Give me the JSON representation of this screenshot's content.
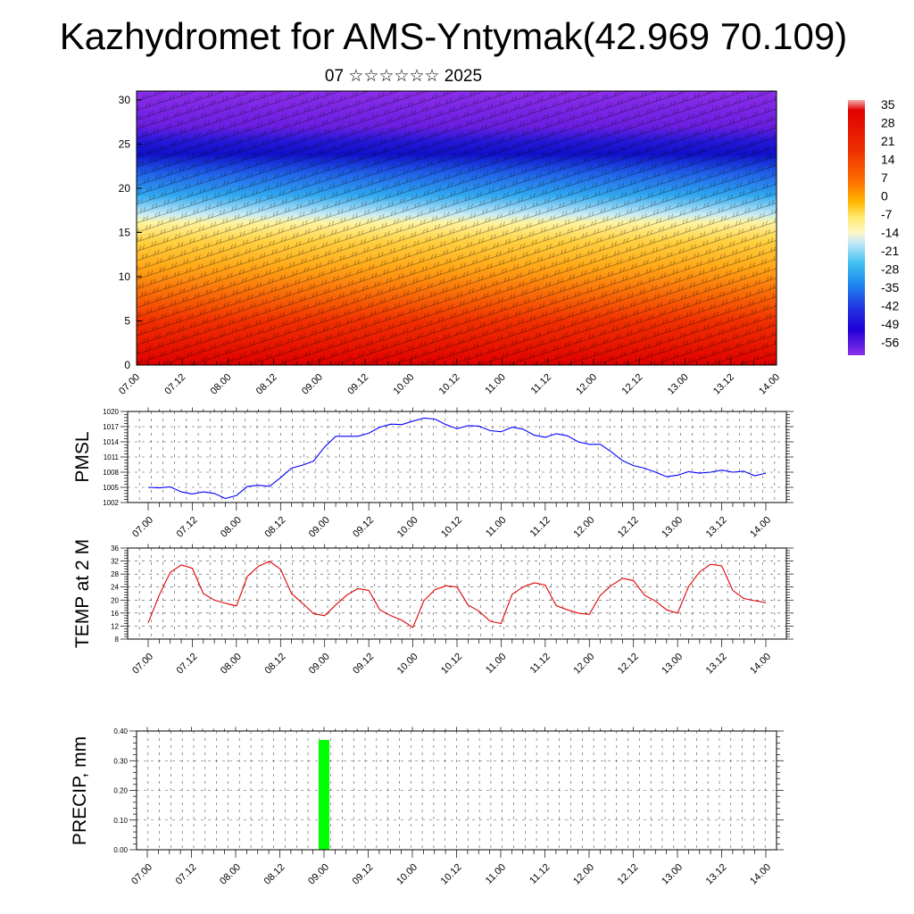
{
  "title": "Kazhydromet for AMS-Yntymak(42.969 70.109)",
  "subtitle": "07 ☆☆☆☆☆☆ 2025",
  "colorbar": {
    "labels": [
      "35",
      "28",
      "21",
      "14",
      "7",
      "0",
      "-7",
      "-14",
      "-21",
      "-28",
      "-35",
      "-42",
      "-49",
      "-56"
    ],
    "colors_top_to_bottom": [
      "#f4a8a8",
      "#e00000",
      "#e82000",
      "#f04000",
      "#f86000",
      "#ff8000",
      "#ffb000",
      "#ffe060",
      "#fff2b0",
      "#bfe6f6",
      "#40c0f0",
      "#2090f0",
      "#2040e0",
      "#2000e0",
      "#5000d8",
      "#8a2ee8"
    ]
  },
  "chart_data": [
    {
      "type": "heatmap",
      "name": "cross-section",
      "x_ticklabels": [
        "07.00",
        "07.12",
        "08.00",
        "08.12",
        "09.00",
        "09.12",
        "10.00",
        "10.12",
        "11.00",
        "11.12",
        "12.00",
        "12.12",
        "13.00",
        "13.12",
        "14.00"
      ],
      "y_ticklabels": [
        "0",
        "5",
        "10",
        "15",
        "20",
        "25",
        "30"
      ],
      "ylim": [
        0,
        31
      ],
      "note": "temperature-colored vertical profile with wind barbs"
    },
    {
      "type": "line",
      "ylabel": "PMSL",
      "ylim": [
        1002,
        1020
      ],
      "yticks": [
        "1020",
        "1017",
        "1014",
        "1011",
        "1008",
        "1005",
        "1002"
      ],
      "x_ticklabels": [
        "07.00",
        "07.12",
        "08.00",
        "08.12",
        "09.00",
        "09.12",
        "10.00",
        "10.12",
        "11.00",
        "11.12",
        "12.00",
        "12.12",
        "13.00",
        "13.12",
        "14.00"
      ],
      "color": "#0000ff",
      "values": [
        1005.0,
        1004.9,
        1005.1,
        1004.1,
        1003.7,
        1004.1,
        1003.8,
        1002.8,
        1003.4,
        1005.2,
        1005.4,
        1005.2,
        1006.9,
        1008.8,
        1009.4,
        1010.2,
        1013.0,
        1015.1,
        1015.1,
        1015.1,
        1015.7,
        1016.9,
        1017.5,
        1017.4,
        1018.1,
        1018.7,
        1018.5,
        1017.4,
        1016.6,
        1017.2,
        1017.1,
        1016.2,
        1016.0,
        1016.9,
        1016.5,
        1015.3,
        1014.9,
        1015.6,
        1015.2,
        1014.0,
        1013.5,
        1013.5,
        1012.0,
        1010.3,
        1009.3,
        1008.8,
        1008.0,
        1007.1,
        1007.4,
        1008.1,
        1007.8,
        1008.0,
        1008.4,
        1008.0,
        1008.2,
        1007.3,
        1007.8
      ]
    },
    {
      "type": "line",
      "ylabel": "TEMP at 2 M",
      "ylim": [
        8,
        36
      ],
      "yticks": [
        "36",
        "32",
        "28",
        "24",
        "20",
        "16",
        "12",
        "8"
      ],
      "x_ticklabels": [
        "07.00",
        "07.12",
        "08.00",
        "08.12",
        "09.00",
        "09.12",
        "10.00",
        "10.12",
        "11.00",
        "11.12",
        "12.00",
        "12.12",
        "13.00",
        "13.12",
        "14.00"
      ],
      "color": "#e00000",
      "values": [
        13.0,
        21.5,
        28.5,
        30.8,
        29.8,
        22.0,
        20.0,
        19.0,
        18.2,
        27.3,
        30.4,
        31.9,
        29.5,
        22.0,
        19.0,
        15.8,
        15.2,
        18.5,
        21.5,
        23.5,
        23.0,
        17.0,
        15.2,
        13.8,
        11.6,
        19.8,
        23.2,
        24.4,
        24.0,
        18.5,
        16.6,
        13.5,
        12.8,
        21.8,
        24.0,
        25.3,
        24.6,
        18.3,
        17.0,
        16.0,
        15.6,
        21.5,
        24.5,
        26.7,
        26.0,
        21.5,
        19.7,
        17.0,
        16.0,
        24.2,
        28.7,
        31.0,
        30.5,
        23.0,
        20.5,
        19.8,
        19.2
      ]
    },
    {
      "type": "bar",
      "ylabel": "PRECIP, mm",
      "ylim": [
        0,
        0.4
      ],
      "yticks": [
        "0.40",
        "0.30",
        "0.20",
        "0.10",
        "0.00"
      ],
      "x_ticklabels": [
        "07.00",
        "07.12",
        "08.00",
        "08.12",
        "09.00",
        "09.12",
        "10.00",
        "10.12",
        "11.00",
        "11.12",
        "12.00",
        "12.12",
        "13.00",
        "13.12",
        "14.00"
      ],
      "color": "#00ff00",
      "bars": [
        {
          "x": "09.00",
          "value": 0.37
        }
      ]
    }
  ]
}
